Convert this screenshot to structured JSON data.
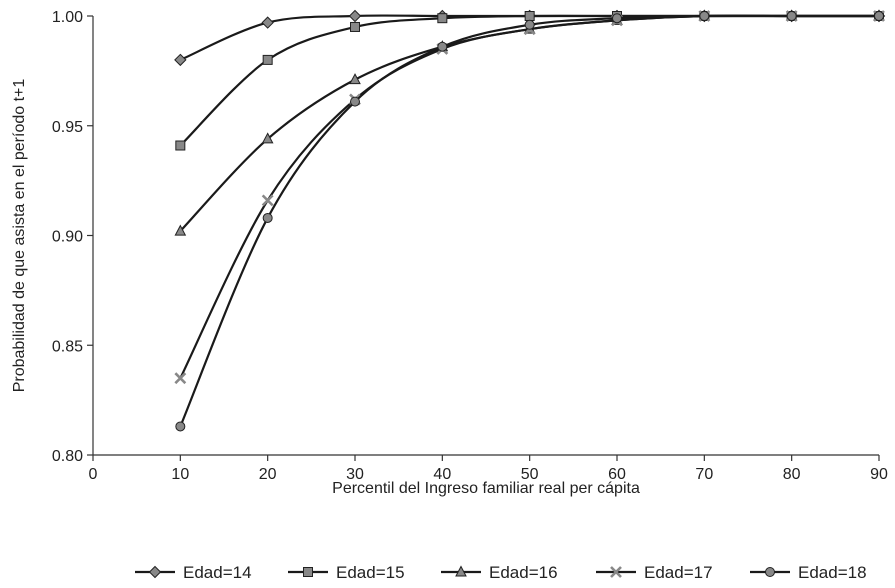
{
  "chart_data": {
    "type": "line",
    "xlabel": "Percentil del Ingreso familiar real per cápita",
    "ylabel": "Probabilidad de que asista en el período t+1",
    "xlim": [
      0,
      90
    ],
    "ylim": [
      0.8,
      1.0
    ],
    "x_ticks": [
      0,
      10,
      20,
      30,
      40,
      50,
      60,
      70,
      80,
      90
    ],
    "y_ticks": [
      0.8,
      0.85,
      0.9,
      0.95,
      1.0
    ],
    "x_tick_labels": [
      "0",
      "10",
      "20",
      "30",
      "40",
      "50",
      "60",
      "70",
      "80",
      "90"
    ],
    "y_tick_labels": [
      "0.80",
      "0.85",
      "0.90",
      "0.95",
      "1.00"
    ],
    "grid": false,
    "legend_position": "bottom",
    "series": [
      {
        "name": "Edad=14",
        "marker": "diamond",
        "x": [
          10,
          20,
          30,
          40,
          50,
          60,
          70,
          80,
          90
        ],
        "values": [
          0.98,
          0.997,
          1.0,
          1.0,
          1.0,
          1.0,
          1.0,
          1.0,
          1.0
        ]
      },
      {
        "name": "Edad=15",
        "marker": "square",
        "x": [
          10,
          20,
          30,
          40,
          50,
          60,
          70,
          80,
          90
        ],
        "values": [
          0.941,
          0.98,
          0.995,
          0.999,
          1.0,
          1.0,
          1.0,
          1.0,
          1.0
        ]
      },
      {
        "name": "Edad=16",
        "marker": "triangle",
        "x": [
          10,
          20,
          30,
          40,
          50,
          60,
          70,
          80,
          90
        ],
        "values": [
          0.902,
          0.944,
          0.971,
          0.986,
          0.994,
          0.998,
          1.0,
          1.0,
          1.0
        ]
      },
      {
        "name": "Edad=17",
        "marker": "x",
        "x": [
          10,
          20,
          30,
          40,
          50,
          60,
          70,
          80,
          90
        ],
        "values": [
          0.835,
          0.916,
          0.962,
          0.985,
          0.994,
          0.998,
          1.0,
          1.0,
          1.0
        ]
      },
      {
        "name": "Edad=18",
        "marker": "circle",
        "x": [
          10,
          20,
          30,
          40,
          50,
          60,
          70,
          80,
          90
        ],
        "values": [
          0.813,
          0.908,
          0.961,
          0.986,
          0.996,
          0.999,
          1.0,
          1.0,
          1.0
        ]
      }
    ]
  }
}
